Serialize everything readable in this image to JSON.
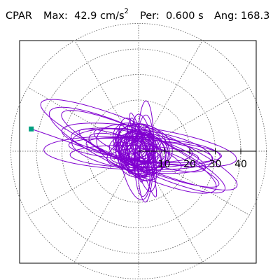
{
  "header": {
    "station": "CPAR",
    "max_label": "Max:",
    "max_value": "42.9 cm/s",
    "max_exp": "2",
    "per_label": "Per:",
    "per_value": "0.600 s",
    "ang_label": "Ang:",
    "ang_value": "168.3"
  },
  "chart_data": {
    "type": "polar-orbit",
    "max_accel_cm_s2": 42.9,
    "period_s": 0.6,
    "angle_deg": 168.3,
    "radial_ticks": [
      10,
      20,
      30,
      40
    ],
    "radial_tick_labels": [
      "10",
      "20",
      "30",
      "40"
    ],
    "rmax": 50,
    "ring_radii": [
      10,
      20,
      30,
      40,
      50
    ],
    "spoke_angles_deg": [
      0,
      30,
      60,
      90,
      120,
      150,
      180,
      210,
      240,
      270,
      300,
      330
    ],
    "grid": true,
    "peak_marker": {
      "r": 42.9,
      "angle_deg": 168.3
    },
    "orbit_ellipses": [
      [
        -26,
        2,
        12,
        1.5
      ],
      [
        -18,
        5,
        4,
        2
      ],
      [
        -12,
        -6,
        8,
        4
      ],
      [
        -8,
        12,
        10,
        6
      ],
      [
        -4,
        -14,
        6,
        8
      ],
      [
        2,
        6,
        22,
        3
      ],
      [
        4,
        -8,
        18,
        5
      ],
      [
        6,
        2,
        14,
        6
      ],
      [
        8,
        -6,
        12,
        4
      ],
      [
        10,
        4,
        16,
        5
      ]
    ],
    "colors": {
      "orbit": "#8000d0",
      "marker": "#00a080",
      "grid": "#555555"
    }
  }
}
